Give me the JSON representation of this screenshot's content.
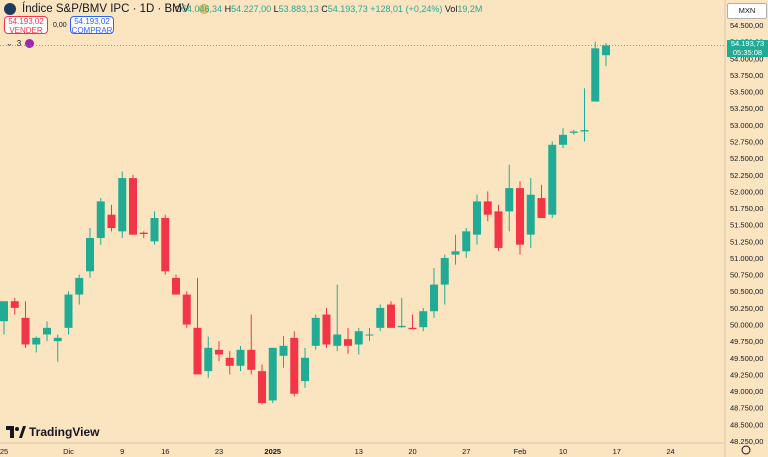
{
  "header": {
    "title": "Índice S&P/BMV IPC · 1D · BMV",
    "ohlc": {
      "o_label": "O",
      "o": "54.046,34",
      "h_label": "H",
      "h": "54.227,00",
      "l_label": "L",
      "l": "53.883,13",
      "c_label": "C",
      "c": "54.193,73",
      "change": "+128,01 (+0,24%)",
      "vol_label": "Vol",
      "vol": "19,2M"
    },
    "sell_price": "54.193,02",
    "sell_label": "VENDER",
    "spread": "0,00",
    "buy_price": "54.193,02",
    "buy_label": "COMPRAR",
    "indicator_count": "3"
  },
  "currency": "MXN",
  "last_price": "54.193,73",
  "countdown": "05:35:08",
  "brand": "TradingView",
  "colors": {
    "up": "#22ab94",
    "down": "#f23645",
    "background": "#fbe4c0"
  },
  "chart_data": {
    "type": "candlestick",
    "y_ticks": [
      48250,
      48500,
      48750,
      49000,
      49250,
      49500,
      49750,
      50000,
      50250,
      50500,
      50750,
      51000,
      51250,
      51500,
      51750,
      52000,
      52250,
      52500,
      52750,
      53000,
      53250,
      53500,
      53750,
      54000,
      54250,
      54500
    ],
    "y_tick_labels": [
      "48.250,00",
      "48.500,00",
      "48.750,00",
      "49.000,00",
      "49.250,00",
      "49.500,00",
      "49.750,00",
      "50.000,00",
      "50.250,00",
      "50.500,00",
      "50.750,00",
      "51.000,00",
      "51.250,00",
      "51.500,00",
      "51.750,00",
      "52.000,00",
      "52.250,00",
      "52.500,00",
      "52.750,00",
      "53.000,00",
      "53.250,00",
      "53.500,00",
      "53.750,00",
      "54.000,00",
      "54.250,00",
      "54.500,00"
    ],
    "x_labels": [
      {
        "i": 0,
        "label": "25"
      },
      {
        "i": 6,
        "label": "Dic"
      },
      {
        "i": 11,
        "label": "9"
      },
      {
        "i": 15,
        "label": "16"
      },
      {
        "i": 20,
        "label": "23"
      },
      {
        "i": 25,
        "label": "2025"
      },
      {
        "i": 33,
        "label": "13"
      },
      {
        "i": 38,
        "label": "20"
      },
      {
        "i": 43,
        "label": "27"
      },
      {
        "i": 48,
        "label": "Feb"
      },
      {
        "i": 52,
        "label": "10"
      },
      {
        "i": 57,
        "label": "17"
      },
      {
        "i": 62,
        "label": "24"
      }
    ],
    "ylim": [
      48250,
      54500
    ],
    "candles": [
      {
        "o": 50050,
        "h": 50350,
        "l": 49850,
        "c": 50350
      },
      {
        "o": 50350,
        "h": 50400,
        "l": 50150,
        "c": 50250
      },
      {
        "o": 50100,
        "h": 50350,
        "l": 49650,
        "c": 49700
      },
      {
        "o": 49700,
        "h": 49820,
        "l": 49580,
        "c": 49800
      },
      {
        "o": 49850,
        "h": 50050,
        "l": 49750,
        "c": 49950
      },
      {
        "o": 49750,
        "h": 49850,
        "l": 49440,
        "c": 49800
      },
      {
        "o": 49950,
        "h": 50500,
        "l": 49850,
        "c": 50450
      },
      {
        "o": 50450,
        "h": 50750,
        "l": 50300,
        "c": 50700
      },
      {
        "o": 50800,
        "h": 51450,
        "l": 50700,
        "c": 51300
      },
      {
        "o": 51300,
        "h": 51900,
        "l": 51200,
        "c": 51850
      },
      {
        "o": 51650,
        "h": 51800,
        "l": 51400,
        "c": 51450
      },
      {
        "o": 51400,
        "h": 52300,
        "l": 51300,
        "c": 52200
      },
      {
        "o": 52200,
        "h": 52250,
        "l": 51350,
        "c": 51350
      },
      {
        "o": 51380,
        "h": 51400,
        "l": 51300,
        "c": 51360
      },
      {
        "o": 51250,
        "h": 51700,
        "l": 51200,
        "c": 51600
      },
      {
        "o": 51600,
        "h": 51650,
        "l": 50750,
        "c": 50800
      },
      {
        "o": 50700,
        "h": 50750,
        "l": 50450,
        "c": 50450
      },
      {
        "o": 50450,
        "h": 50500,
        "l": 49950,
        "c": 50000
      },
      {
        "o": 49950,
        "h": 50700,
        "l": 49250,
        "c": 49250
      },
      {
        "o": 49300,
        "h": 49820,
        "l": 49200,
        "c": 49650
      },
      {
        "o": 49620,
        "h": 49750,
        "l": 49450,
        "c": 49550
      },
      {
        "o": 49500,
        "h": 49600,
        "l": 49250,
        "c": 49380
      },
      {
        "o": 49380,
        "h": 49680,
        "l": 49300,
        "c": 49620
      },
      {
        "o": 49620,
        "h": 50150,
        "l": 49250,
        "c": 49320
      },
      {
        "o": 49300,
        "h": 49400,
        "l": 48800,
        "c": 48820
      },
      {
        "o": 48860,
        "h": 49650,
        "l": 48820,
        "c": 49650
      },
      {
        "o": 49530,
        "h": 49830,
        "l": 49350,
        "c": 49680
      },
      {
        "o": 49800,
        "h": 49900,
        "l": 48920,
        "c": 48960
      },
      {
        "o": 49150,
        "h": 49650,
        "l": 49050,
        "c": 49500
      },
      {
        "o": 49680,
        "h": 50150,
        "l": 49620,
        "c": 50100
      },
      {
        "o": 50150,
        "h": 50250,
        "l": 49650,
        "c": 49700
      },
      {
        "o": 49680,
        "h": 50600,
        "l": 49600,
        "c": 49850
      },
      {
        "o": 49780,
        "h": 49950,
        "l": 49560,
        "c": 49680
      },
      {
        "o": 49700,
        "h": 49950,
        "l": 49550,
        "c": 49900
      },
      {
        "o": 49850,
        "h": 49950,
        "l": 49750,
        "c": 49850
      },
      {
        "o": 49950,
        "h": 50300,
        "l": 49900,
        "c": 50250
      },
      {
        "o": 50300,
        "h": 50350,
        "l": 49950,
        "c": 49950
      },
      {
        "o": 49960,
        "h": 50400,
        "l": 49950,
        "c": 49980
      },
      {
        "o": 49950,
        "h": 50150,
        "l": 49930,
        "c": 49930
      },
      {
        "o": 49960,
        "h": 50250,
        "l": 49900,
        "c": 50200
      },
      {
        "o": 50200,
        "h": 50850,
        "l": 50100,
        "c": 50600
      },
      {
        "o": 50600,
        "h": 51050,
        "l": 50300,
        "c": 51000
      },
      {
        "o": 51050,
        "h": 51350,
        "l": 50900,
        "c": 51100
      },
      {
        "o": 51100,
        "h": 51450,
        "l": 51000,
        "c": 51400
      },
      {
        "o": 51350,
        "h": 51950,
        "l": 51200,
        "c": 51850
      },
      {
        "o": 51850,
        "h": 52000,
        "l": 51550,
        "c": 51650
      },
      {
        "o": 51700,
        "h": 51800,
        "l": 51100,
        "c": 51150
      },
      {
        "o": 51700,
        "h": 52400,
        "l": 51400,
        "c": 52050
      },
      {
        "o": 52050,
        "h": 52150,
        "l": 51050,
        "c": 51200
      },
      {
        "o": 51350,
        "h": 52200,
        "l": 51150,
        "c": 51950
      },
      {
        "o": 51900,
        "h": 52100,
        "l": 51600,
        "c": 51600
      },
      {
        "o": 51650,
        "h": 52750,
        "l": 51600,
        "c": 52700
      },
      {
        "o": 52700,
        "h": 52950,
        "l": 52650,
        "c": 52850
      },
      {
        "o": 52880,
        "h": 52920,
        "l": 52850,
        "c": 52900
      },
      {
        "o": 52900,
        "h": 53550,
        "l": 52750,
        "c": 52920
      },
      {
        "o": 53350,
        "h": 54250,
        "l": 53350,
        "c": 54150
      },
      {
        "o": 54046.34,
        "h": 54227,
        "l": 53883.13,
        "c": 54193.73
      }
    ]
  }
}
